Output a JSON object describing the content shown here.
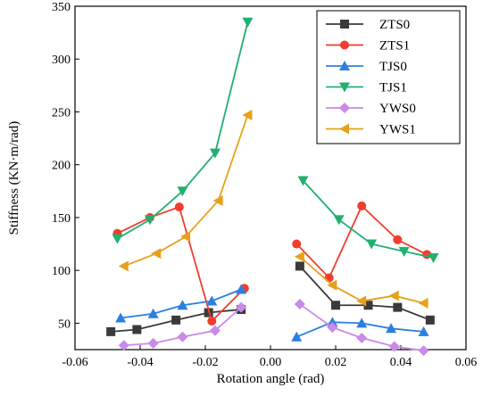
{
  "chart_data": {
    "type": "line",
    "xlabel": "Rotation angle (rad)",
    "ylabel": "Stiffness (KN·m/rad)",
    "xlim": [
      -0.06,
      0.06
    ],
    "ylim": [
      25,
      350
    ],
    "xticks": [
      -0.06,
      -0.04,
      -0.02,
      0.0,
      0.02,
      0.04,
      0.06
    ],
    "xtick_labels": [
      "-0.06",
      "-0.04",
      "-0.02",
      "0.00",
      "0.02",
      "0.04",
      "0.06"
    ],
    "yticks": [
      50,
      100,
      150,
      200,
      250,
      300,
      350
    ],
    "ytick_labels": [
      "50",
      "100",
      "150",
      "200",
      "250",
      "300",
      "350"
    ],
    "grid": false,
    "legend_position": "top-right",
    "series": [
      {
        "name": "ZTS0",
        "color": "#3a3a3a",
        "marker": "square",
        "negative": [
          [
            -0.049,
            42
          ],
          [
            -0.041,
            44
          ],
          [
            -0.029,
            53
          ],
          [
            -0.019,
            60
          ],
          [
            -0.009,
            63
          ]
        ],
        "positive": [
          [
            0.009,
            104
          ],
          [
            0.02,
            67
          ],
          [
            0.03,
            67
          ],
          [
            0.039,
            65
          ],
          [
            0.049,
            53
          ]
        ]
      },
      {
        "name": "ZTS1",
        "color": "#f23c2f",
        "marker": "circle",
        "negative": [
          [
            -0.047,
            135
          ],
          [
            -0.037,
            150
          ],
          [
            -0.028,
            160
          ],
          [
            -0.018,
            52
          ],
          [
            -0.008,
            83
          ]
        ],
        "positive": [
          [
            0.008,
            125
          ],
          [
            0.018,
            93
          ],
          [
            0.028,
            161
          ],
          [
            0.039,
            129
          ],
          [
            0.048,
            115
          ]
        ]
      },
      {
        "name": "TJS0",
        "color": "#2b7fe0",
        "marker": "triangle-up",
        "negative": [
          [
            -0.046,
            55
          ],
          [
            -0.036,
            59
          ],
          [
            -0.027,
            67
          ],
          [
            -0.018,
            71
          ],
          [
            -0.009,
            82
          ]
        ],
        "positive": [
          [
            0.008,
            37
          ],
          [
            0.019,
            51
          ],
          [
            0.028,
            50
          ],
          [
            0.037,
            45
          ],
          [
            0.047,
            42
          ]
        ]
      },
      {
        "name": "TJS1",
        "color": "#20b070",
        "marker": "triangle-down",
        "negative": [
          [
            -0.047,
            130
          ],
          [
            -0.037,
            148
          ],
          [
            -0.027,
            175
          ],
          [
            -0.017,
            211
          ],
          [
            -0.007,
            335
          ]
        ],
        "positive": [
          [
            0.01,
            185
          ],
          [
            0.021,
            148
          ],
          [
            0.031,
            125
          ],
          [
            0.041,
            118
          ],
          [
            0.05,
            112
          ]
        ]
      },
      {
        "name": "YWS0",
        "color": "#c98ae8",
        "marker": "diamond",
        "negative": [
          [
            -0.045,
            29
          ],
          [
            -0.036,
            31
          ],
          [
            -0.027,
            37
          ],
          [
            -0.017,
            43
          ],
          [
            -0.009,
            65
          ]
        ],
        "positive": [
          [
            0.009,
            68
          ],
          [
            0.019,
            46
          ],
          [
            0.028,
            36
          ],
          [
            0.038,
            28
          ],
          [
            0.047,
            24
          ]
        ]
      },
      {
        "name": "YWS1",
        "color": "#e8a01a",
        "marker": "triangle-left",
        "negative": [
          [
            -0.045,
            104
          ],
          [
            -0.035,
            116
          ],
          [
            -0.026,
            132
          ],
          [
            -0.016,
            166
          ],
          [
            -0.007,
            247
          ]
        ],
        "positive": [
          [
            0.009,
            113
          ],
          [
            0.019,
            86
          ],
          [
            0.028,
            71
          ],
          [
            0.038,
            76
          ],
          [
            0.047,
            69
          ]
        ]
      }
    ]
  }
}
